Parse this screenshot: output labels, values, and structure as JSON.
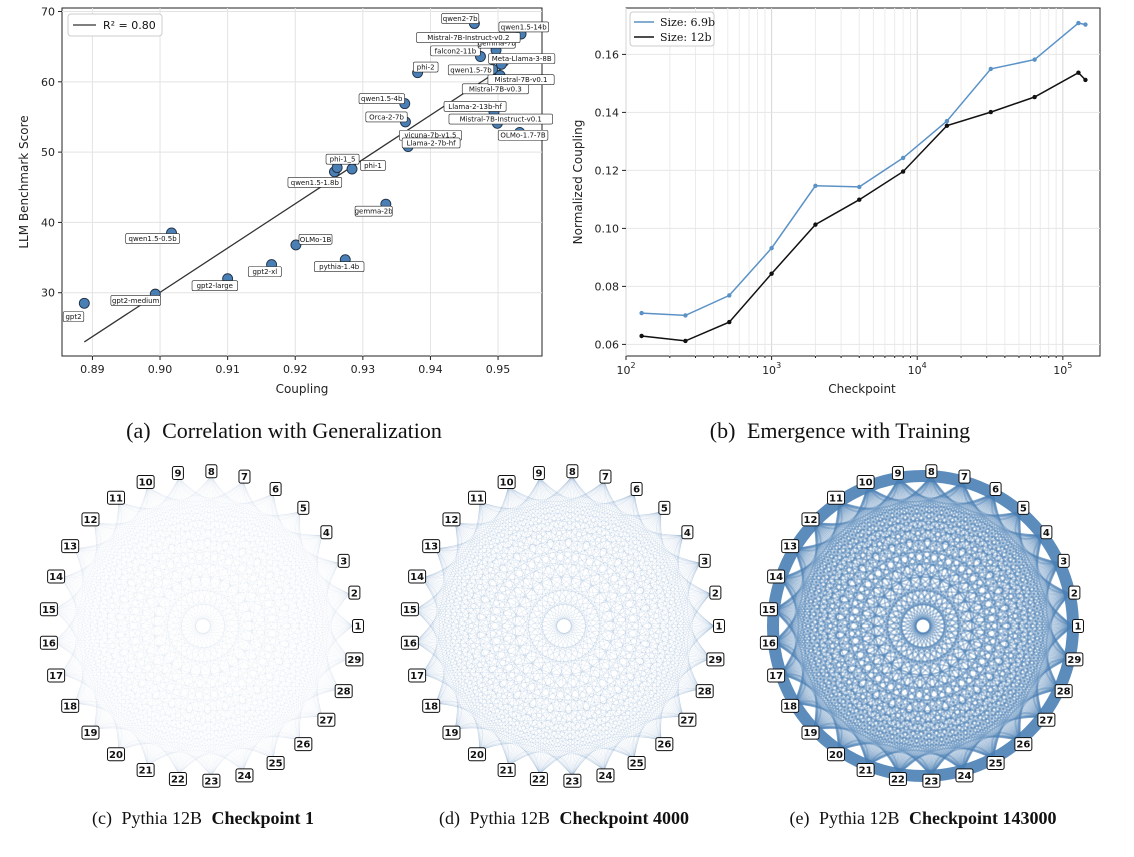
{
  "colors": {
    "steel": "#4a7fb5",
    "steel_light": "#5b92c6",
    "black": "#111111",
    "grid": "#e3e3e3"
  },
  "chart_data": [
    {
      "id": "a",
      "type": "scatter",
      "caption_letter": "(a)",
      "caption": "Correlation with Generalization",
      "xlabel": "Coupling",
      "ylabel": "LLM Benchmark Score",
      "xlim": [
        0.8855,
        0.9565
      ],
      "ylim": [
        21,
        70.5
      ],
      "xticks": [
        "0.89",
        "0.90",
        "0.91",
        "0.92",
        "0.93",
        "0.94",
        "0.95"
      ],
      "yticks": [
        "30",
        "40",
        "50",
        "60",
        "70"
      ],
      "fit_label": "R² = 0.80",
      "fit_line": {
        "x": [
          0.8888,
          0.9515
        ],
        "y": [
          23.0,
          62.5
        ]
      },
      "points": [
        {
          "name": "gpt2",
          "x": 0.8888,
          "y": 28.5,
          "lx": -0.0016,
          "ly": -1.9
        },
        {
          "name": "gpt2-medium",
          "x": 0.8993,
          "y": 29.8,
          "lx": -0.0029,
          "ly": -0.9
        },
        {
          "name": "gpt2-large",
          "x": 0.91,
          "y": 32.0,
          "lx": -0.0019,
          "ly": -1.0
        },
        {
          "name": "gpt2-xl",
          "x": 0.9165,
          "y": 34.0,
          "lx": -0.001,
          "ly": -1.0
        },
        {
          "name": "qwen1.5-0.5b",
          "x": 0.9017,
          "y": 38.5,
          "lx": -0.0028,
          "ly": -0.8
        },
        {
          "name": "OLMo-1B",
          "x": 0.9201,
          "y": 36.8,
          "lx": 0.0029,
          "ly": 0.8
        },
        {
          "name": "pythia-1.4b",
          "x": 0.9274,
          "y": 34.7,
          "lx": -0.0009,
          "ly": -1.0
        },
        {
          "name": "gemma-2b",
          "x": 0.9334,
          "y": 42.6,
          "lx": -0.0018,
          "ly": -1.0
        },
        {
          "name": "qwen1.5-1.8b",
          "x": 0.9258,
          "y": 47.2,
          "lx": -0.0029,
          "ly": -1.5
        },
        {
          "name": "phi-1_5",
          "x": 0.9262,
          "y": 47.8,
          "lx": 0.0008,
          "ly": 1.2
        },
        {
          "name": "phi-1",
          "x": 0.9284,
          "y": 47.6,
          "lx": 0.0031,
          "ly": 0.5
        },
        {
          "name": "vicuna-7b-v1.5",
          "x": 0.9366,
          "y": 51.8,
          "lx": 0.0034,
          "ly": 0.6
        },
        {
          "name": "Llama-2-7b-hf",
          "x": 0.9367,
          "y": 50.8,
          "lx": 0.0034,
          "ly": 0.5
        },
        {
          "name": "Orca-2-7b",
          "x": 0.9363,
          "y": 54.3,
          "lx": -0.0028,
          "ly": 0.7
        },
        {
          "name": "qwen1.5-4b",
          "x": 0.9362,
          "y": 56.9,
          "lx": -0.0034,
          "ly": 0.7
        },
        {
          "name": "phi-2",
          "x": 0.9381,
          "y": 61.3,
          "lx": 0.0012,
          "ly": 0.8
        },
        {
          "name": "Llama-2-13b-hf",
          "x": 0.9494,
          "y": 55.7,
          "lx": -0.0028,
          "ly": 0.8
        },
        {
          "name": "Mistral-7B-Instruct-v0.1",
          "x": 0.9499,
          "y": 54.1,
          "lx": 0.0005,
          "ly": 0.6
        },
        {
          "name": "OLMo-1.7-7B",
          "x": 0.9532,
          "y": 52.8,
          "lx": 0.0005,
          "ly": -0.4
        },
        {
          "name": "Mistral-7B-v0.3",
          "x": 0.9495,
          "y": 60.5,
          "lx": 0.0001,
          "ly": -1.5
        },
        {
          "name": "Mistral-7B-v0.1",
          "x": 0.9503,
          "y": 60.9,
          "lx": 0.0031,
          "ly": -0.6
        },
        {
          "name": "qwen1.5-7b",
          "x": 0.9492,
          "y": 61.8,
          "lx": -0.0032,
          "ly": -0.1
        },
        {
          "name": "Meta-Llama-3-8B",
          "x": 0.9505,
          "y": 62.5,
          "lx": 0.003,
          "ly": 0.8
        },
        {
          "name": "falcon2-11b",
          "x": 0.9474,
          "y": 63.6,
          "lx": -0.0037,
          "ly": 0.8
        },
        {
          "name": "gemma-7b",
          "x": 0.9497,
          "y": 64.5,
          "lx": 0.0001,
          "ly": 1.0
        },
        {
          "name": "Mistral-7B-Instruct-v0.2",
          "x": 0.9498,
          "y": 65.6,
          "lx": -0.0042,
          "ly": 0.7
        },
        {
          "name": "qwen2-7b",
          "x": 0.9465,
          "y": 68.3,
          "lx": -0.0021,
          "ly": 0.7
        },
        {
          "name": "qwen1.5-14b",
          "x": 0.9534,
          "y": 66.8,
          "lx": 0.0004,
          "ly": 1.0
        }
      ]
    },
    {
      "id": "b",
      "type": "line",
      "caption_letter": "(b)",
      "caption": "Emergence with Training",
      "xlabel": "Checkpoint",
      "ylabel": "Normalized Coupling",
      "xscale": "log",
      "xlim": [
        100,
        180000
      ],
      "ylim": [
        0.056,
        0.176
      ],
      "yticks": [
        "0.06",
        "0.08",
        "0.10",
        "0.12",
        "0.14",
        "0.16"
      ],
      "xticks": [
        "10",
        "10",
        "10",
        "10"
      ],
      "xtick_exponents": [
        "2",
        "3",
        "4",
        "5"
      ],
      "x": [
        128,
        256,
        512,
        1000,
        2000,
        4000,
        8000,
        16000,
        32000,
        64000,
        128000,
        143000
      ],
      "series": [
        {
          "name": "Size: 6.9b",
          "values": [
            0.0708,
            0.07,
            0.0769,
            0.0932,
            0.1147,
            0.1143,
            0.1243,
            0.137,
            0.155,
            0.1582,
            0.1708,
            0.1703
          ]
        },
        {
          "name": "Size: 12b",
          "values": [
            0.0629,
            0.0612,
            0.0677,
            0.0844,
            0.1013,
            0.1099,
            0.1196,
            0.1354,
            0.1401,
            0.1453,
            0.1537,
            0.1512
          ]
        }
      ]
    },
    {
      "id": "c",
      "type": "network",
      "caption_letter": "(c)",
      "caption_prefix": "Pythia 12B",
      "caption_bold": "Checkpoint 1",
      "nodes": [
        "1",
        "2",
        "3",
        "4",
        "5",
        "6",
        "7",
        "8",
        "9",
        "10",
        "11",
        "12",
        "13",
        "14",
        "15",
        "16",
        "17",
        "18",
        "19",
        "20",
        "21",
        "22",
        "23",
        "24",
        "25",
        "26",
        "27",
        "28",
        "29"
      ],
      "edge_weight": 0.12
    },
    {
      "id": "d",
      "type": "network",
      "caption_letter": "(d)",
      "caption_prefix": "Pythia 12B",
      "caption_bold": "Checkpoint 4000",
      "nodes": [
        "1",
        "2",
        "3",
        "4",
        "5",
        "6",
        "7",
        "8",
        "9",
        "10",
        "11",
        "12",
        "13",
        "14",
        "15",
        "16",
        "17",
        "18",
        "19",
        "20",
        "21",
        "22",
        "23",
        "24",
        "25",
        "26",
        "27",
        "28",
        "29"
      ],
      "edge_weight": 0.35
    },
    {
      "id": "e",
      "type": "network",
      "caption_letter": "(e)",
      "caption_prefix": "Pythia 12B",
      "caption_bold": "Checkpoint 143000",
      "nodes": [
        "1",
        "2",
        "3",
        "4",
        "5",
        "6",
        "7",
        "8",
        "9",
        "10",
        "11",
        "12",
        "13",
        "14",
        "15",
        "16",
        "17",
        "18",
        "19",
        "20",
        "21",
        "22",
        "23",
        "24",
        "25",
        "26",
        "27",
        "28",
        "29"
      ],
      "edge_weight": 1.0
    }
  ]
}
